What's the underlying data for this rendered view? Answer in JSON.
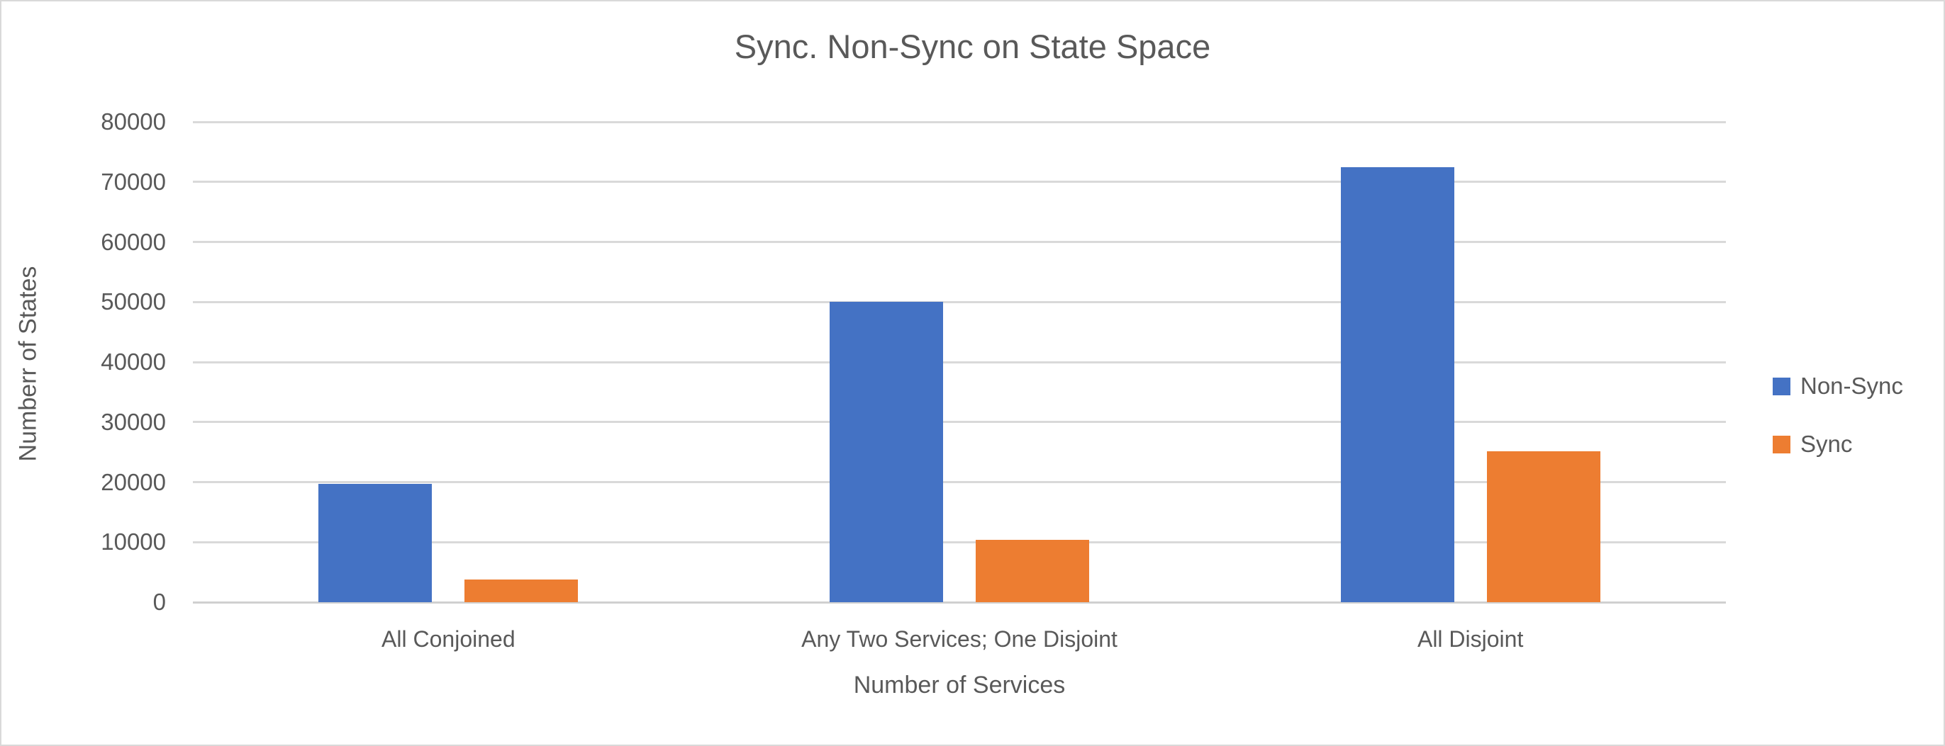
{
  "chart_data": {
    "type": "bar",
    "title": "Sync. Non-Sync on State Space",
    "xlabel": "Number of Services",
    "ylabel": "Numberr of States",
    "categories": [
      "All Conjoined",
      "Any Two Services; One Disjoint",
      "All Disjoint"
    ],
    "series": [
      {
        "name": "Non-Sync",
        "color": "#4472C4",
        "values": [
          19700,
          50000,
          72500
        ]
      },
      {
        "name": "Sync",
        "color": "#ED7D31",
        "values": [
          3800,
          10400,
          25100
        ]
      }
    ],
    "ylim": [
      0,
      80000
    ],
    "ytick_step": 10000,
    "ytick_labels": [
      "0",
      "10000",
      "20000",
      "30000",
      "40000",
      "50000",
      "60000",
      "70000",
      "80000"
    ],
    "grid": "horizontal",
    "legend_position": "right",
    "colors": {
      "text": "#595959",
      "gridline": "#D9D9D9",
      "background": "#FFFFFF"
    }
  }
}
